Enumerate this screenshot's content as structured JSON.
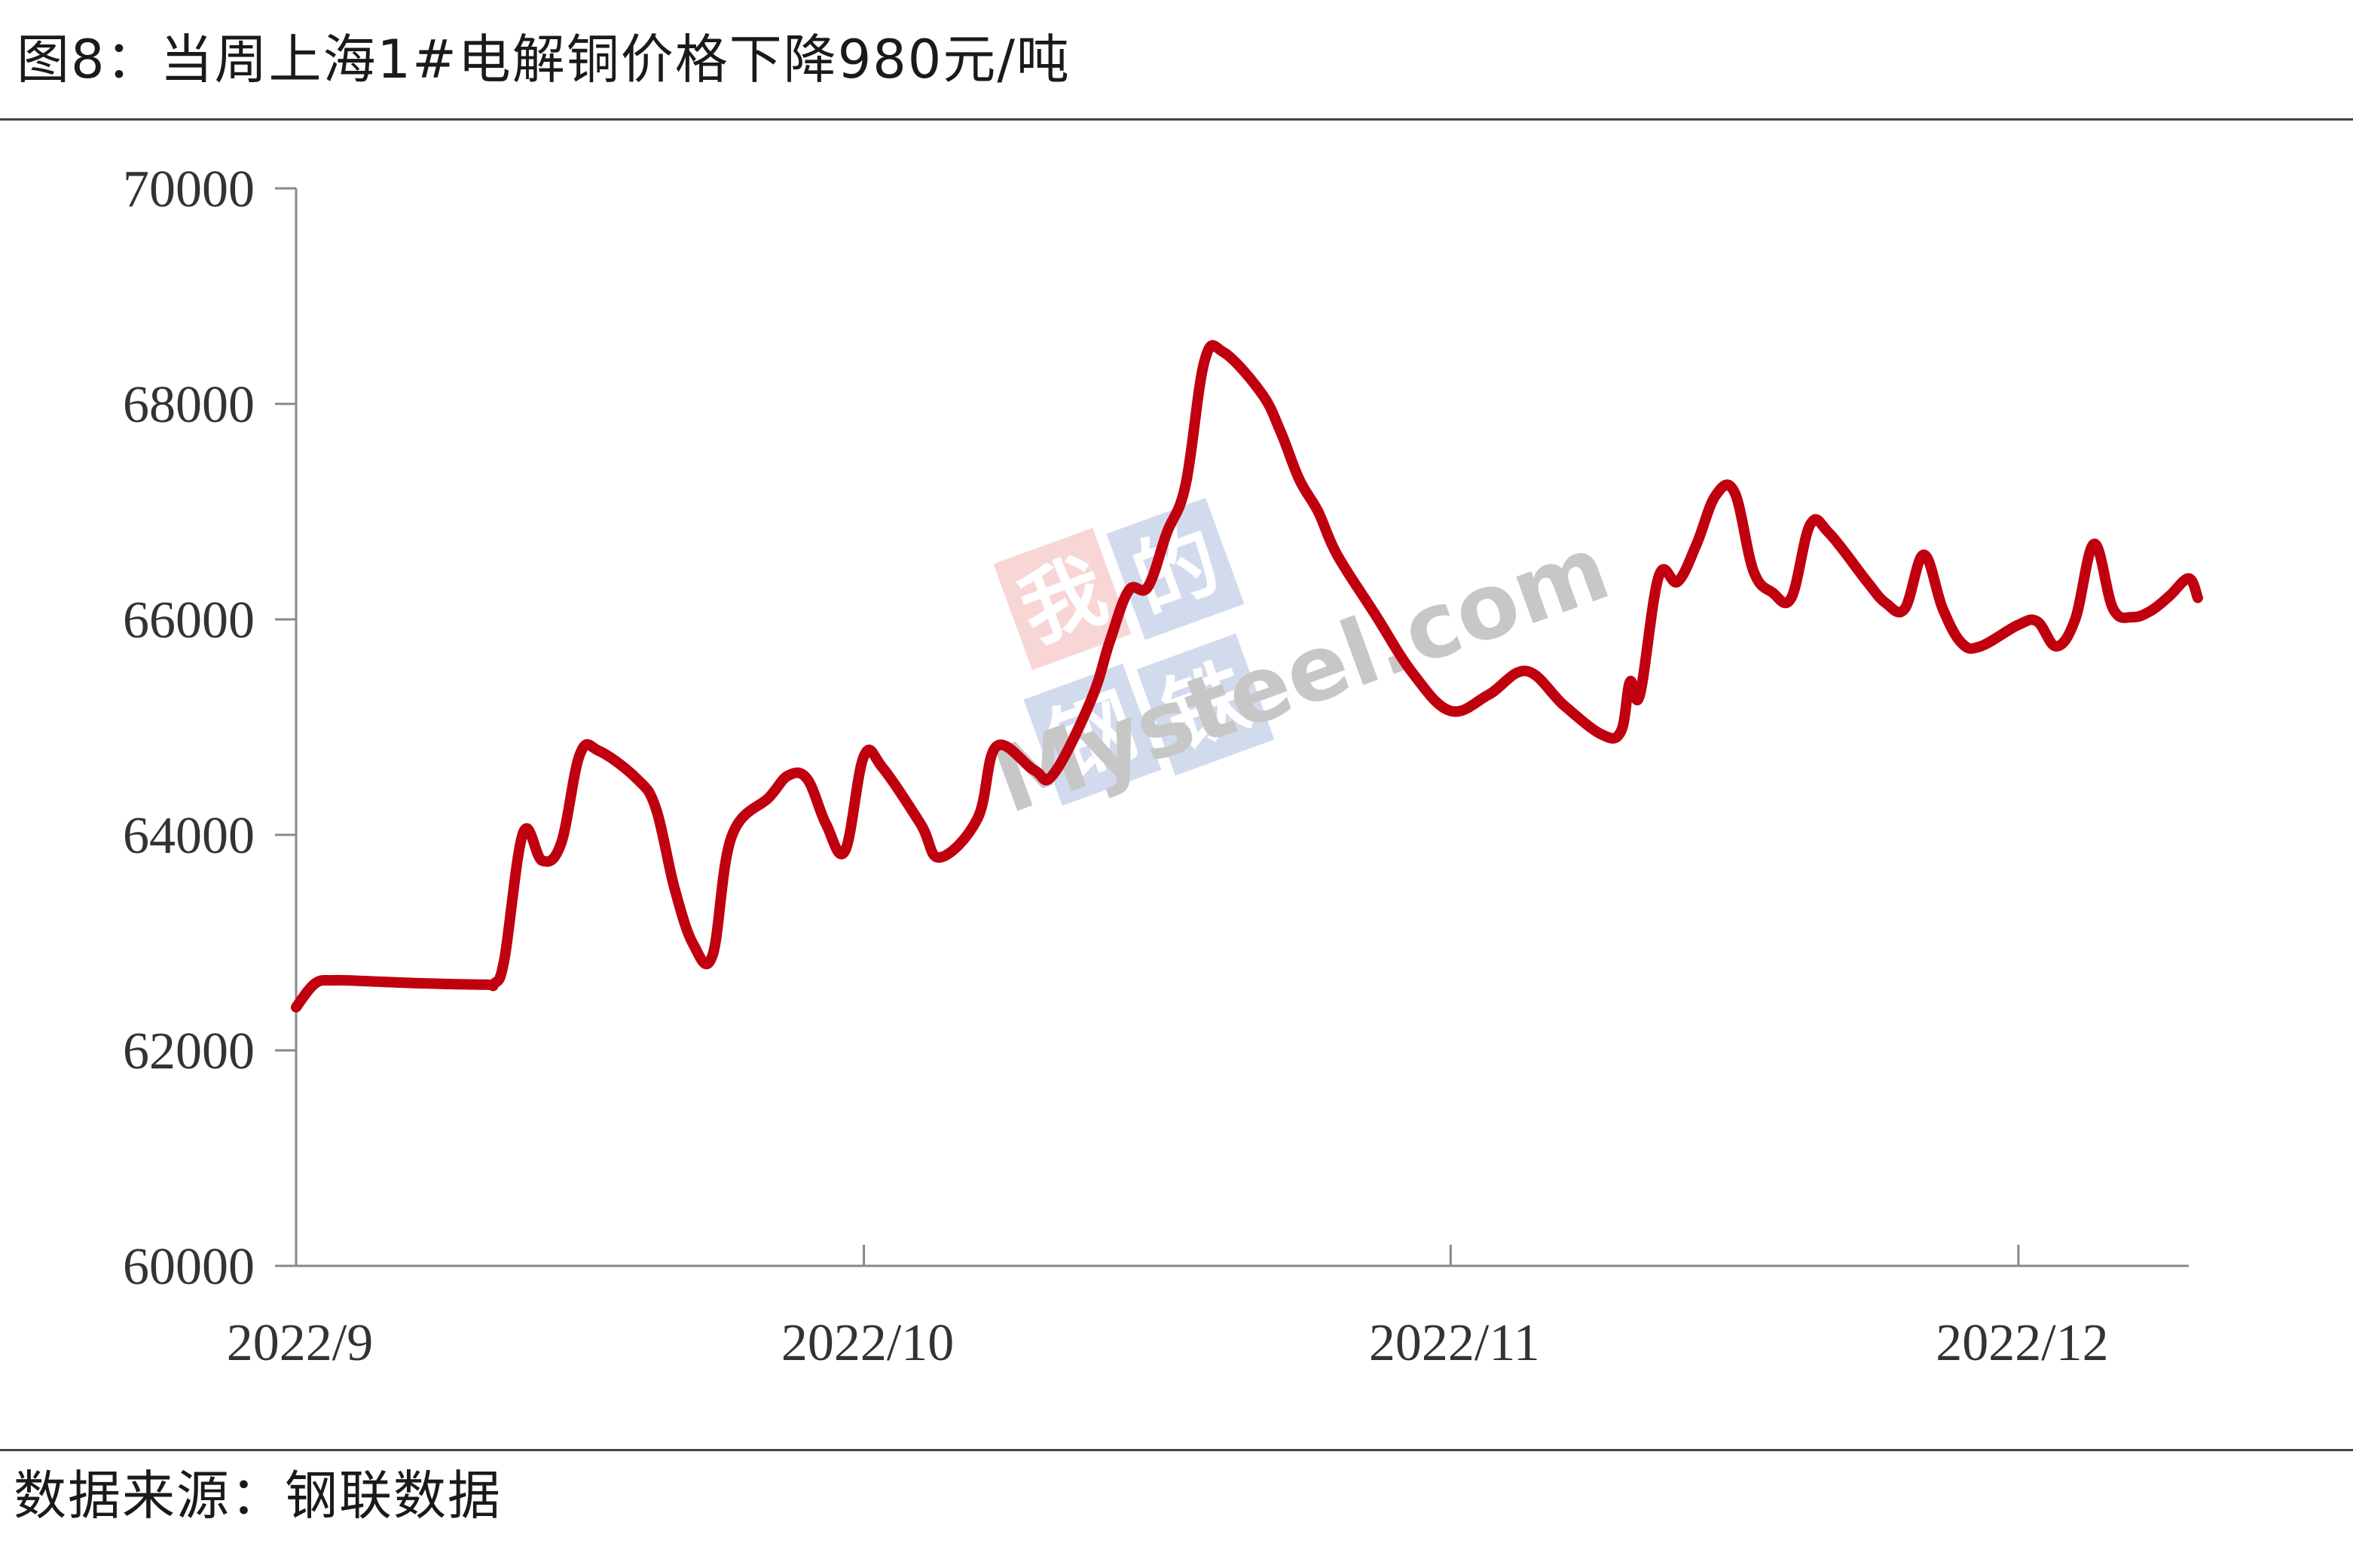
{
  "title": "图8：当周上海1#电解铜价格下降980元/吨",
  "source": "数据来源：钢联数据",
  "watermark": {
    "text_cn": [
      "我",
      "的",
      "钢",
      "铁"
    ],
    "text_en": "Mysteel.com"
  },
  "colors": {
    "line": "#C0000F",
    "axis": "#888888",
    "watermark_red": "#E25A5A",
    "watermark_blue": "#4A6DB5",
    "watermark_gray": "#9A9A9A"
  },
  "chart_data": {
    "type": "line",
    "title": "",
    "xlabel": "",
    "ylabel": "",
    "ylim": [
      60000,
      70000
    ],
    "yticks": [
      60000,
      62000,
      64000,
      66000,
      68000,
      70000
    ],
    "ytick_labels": [
      "60000",
      "62000",
      "64000",
      "66000",
      "68000",
      "70000"
    ],
    "xlim": [
      "2022-09-01",
      "2022-12-10"
    ],
    "xticks": [
      {
        "date": "2022-09-01",
        "label": "2022/9"
      },
      {
        "date": "2022-10-01",
        "label": "2022/10"
      },
      {
        "date": "2022-11-01",
        "label": "2022/11"
      },
      {
        "date": "2022-12-01",
        "label": "2022/12"
      }
    ],
    "grid": false,
    "legend": "none",
    "series": [
      {
        "name": "",
        "points": [
          [
            "2022-09-01",
            62400
          ],
          [
            "2022-09-02",
            62620
          ],
          [
            "2022-09-03",
            62650
          ],
          [
            "2022-09-05",
            62640
          ],
          [
            "2022-09-08",
            62620
          ],
          [
            "2022-09-11",
            62610
          ],
          [
            "2022-09-11",
            62620
          ],
          [
            "2022-09-12",
            62840
          ],
          [
            "2022-09-13",
            64020
          ],
          [
            "2022-09-14",
            63760
          ],
          [
            "2022-09-15",
            63920
          ],
          [
            "2022-09-16",
            64750
          ],
          [
            "2022-09-17",
            64780
          ],
          [
            "2022-09-19",
            64520
          ],
          [
            "2022-09-20",
            64250
          ],
          [
            "2022-09-21",
            63500
          ],
          [
            "2022-09-22",
            62980
          ],
          [
            "2022-09-23",
            62880
          ],
          [
            "2022-09-24",
            63980
          ],
          [
            "2022-09-26",
            64350
          ],
          [
            "2022-09-27",
            64550
          ],
          [
            "2022-09-28",
            64520
          ],
          [
            "2022-09-29",
            64100
          ],
          [
            "2022-09-30",
            63850
          ],
          [
            "2022-10-01",
            64730
          ],
          [
            "2022-10-02",
            64620
          ],
          [
            "2022-10-04",
            64100
          ],
          [
            "2022-10-05",
            63790
          ],
          [
            "2022-10-07",
            64150
          ],
          [
            "2022-10-08",
            64820
          ],
          [
            "2022-10-10",
            64600
          ],
          [
            "2022-10-11",
            64560
          ],
          [
            "2022-10-13",
            65250
          ],
          [
            "2022-10-14",
            65800
          ],
          [
            "2022-10-15",
            66270
          ],
          [
            "2022-10-16",
            66300
          ],
          [
            "2022-10-17",
            66800
          ],
          [
            "2022-10-18",
            67250
          ],
          [
            "2022-10-19",
            68400
          ],
          [
            "2022-10-20",
            68480
          ],
          [
            "2022-10-22",
            68100
          ],
          [
            "2022-10-23",
            67750
          ],
          [
            "2022-10-24",
            67300
          ],
          [
            "2022-10-25",
            67000
          ],
          [
            "2022-10-26",
            66600
          ],
          [
            "2022-10-28",
            66050
          ],
          [
            "2022-10-30",
            65500
          ],
          [
            "2022-11-01",
            65150
          ],
          [
            "2022-11-03",
            65300
          ],
          [
            "2022-11-05",
            65520
          ],
          [
            "2022-11-07",
            65200
          ],
          [
            "2022-11-09",
            64930
          ],
          [
            "2022-11-10",
            64960
          ],
          [
            "2022-11-10",
            65420
          ],
          [
            "2022-11-11",
            65300
          ],
          [
            "2022-11-12",
            66400
          ],
          [
            "2022-11-13",
            66350
          ],
          [
            "2022-11-14",
            66700
          ],
          [
            "2022-11-15",
            67150
          ],
          [
            "2022-11-16",
            67180
          ],
          [
            "2022-11-17",
            66450
          ],
          [
            "2022-11-18",
            66250
          ],
          [
            "2022-11-19",
            66200
          ],
          [
            "2022-11-20",
            66880
          ],
          [
            "2022-11-21",
            66800
          ],
          [
            "2022-11-23",
            66350
          ],
          [
            "2022-11-24",
            66150
          ],
          [
            "2022-11-25",
            66100
          ],
          [
            "2022-11-26",
            66600
          ],
          [
            "2022-11-27",
            66100
          ],
          [
            "2022-11-28",
            65780
          ],
          [
            "2022-11-29",
            65750
          ],
          [
            "2022-12-01",
            65950
          ],
          [
            "2022-12-02",
            65980
          ],
          [
            "2022-12-03",
            65750
          ],
          [
            "2022-12-04",
            66000
          ],
          [
            "2022-12-05",
            66700
          ],
          [
            "2022-12-06",
            66100
          ],
          [
            "2022-12-07",
            66020
          ],
          [
            "2022-12-08",
            66080
          ],
          [
            "2022-12-09",
            66220
          ],
          [
            "2022-12-10",
            66380
          ],
          [
            "2022-12-10",
            66200
          ]
        ]
      }
    ]
  }
}
